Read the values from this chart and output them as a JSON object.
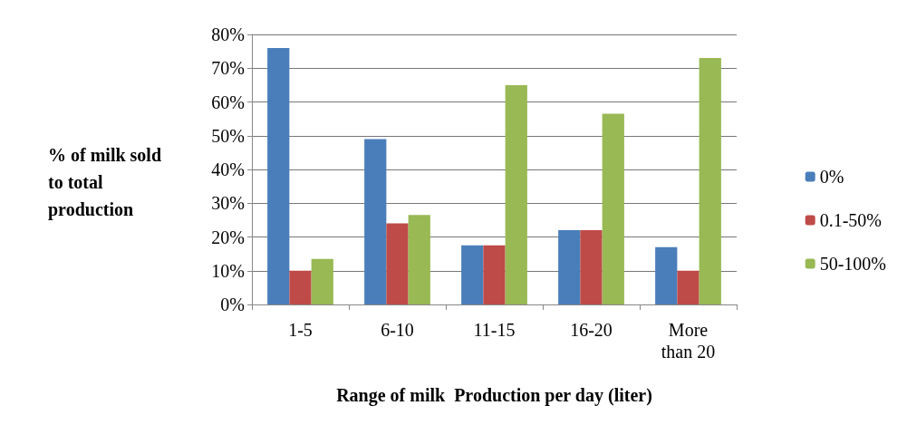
{
  "chart_data": {
    "type": "bar",
    "xlabel": "Range of milk  Production per day (liter)",
    "ylabel": "% of milk sold\nto total\nproduction",
    "categories": [
      "1-5",
      "6-10",
      "11-15",
      "16-20",
      "More\nthan 20"
    ],
    "series": [
      {
        "name": "0%",
        "color": "#4a7ebb",
        "values": [
          76,
          49,
          17.5,
          22,
          17
        ]
      },
      {
        "name": "0.1-50%",
        "color": "#be4b48",
        "values": [
          10,
          24,
          17.5,
          22,
          10
        ]
      },
      {
        "name": "50-100%",
        "color": "#98b954",
        "values": [
          13.5,
          26.5,
          65,
          56.5,
          73
        ]
      }
    ],
    "ylim": [
      0,
      80
    ],
    "yticks": [
      {
        "value": 0,
        "label": "0%"
      },
      {
        "value": 10,
        "label": "10%"
      },
      {
        "value": 20,
        "label": "20%"
      },
      {
        "value": 30,
        "label": "30%"
      },
      {
        "value": 40,
        "label": "40%"
      },
      {
        "value": 50,
        "label": "50%"
      },
      {
        "value": 60,
        "label": "60%"
      },
      {
        "value": 70,
        "label": "70%"
      },
      {
        "value": 80,
        "label": "80%"
      }
    ],
    "grid": "y",
    "legend": "right"
  }
}
